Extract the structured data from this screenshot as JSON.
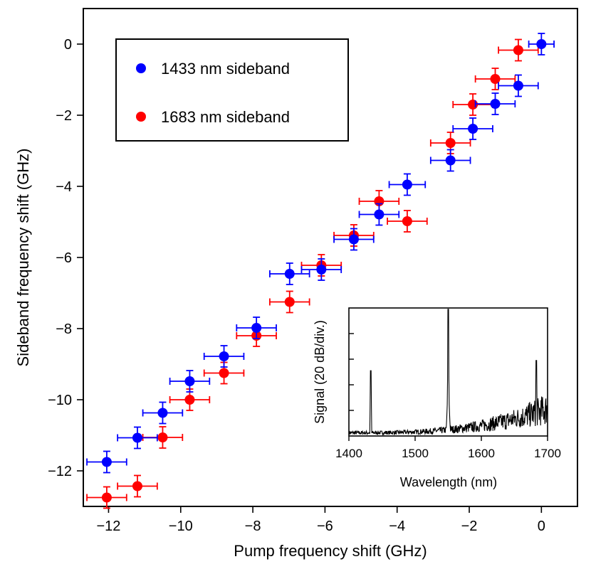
{
  "chart_data": [
    {
      "type": "scatter",
      "title": "",
      "xlabel": "Pump frequency shift (GHz)",
      "ylabel": "Sideband frequency shift (GHz)",
      "xlim": [
        -12.7,
        1.0
      ],
      "ylim": [
        -13.0,
        1.0
      ],
      "xticks": [
        -12,
        -10,
        -8,
        -6,
        -4,
        -2,
        0
      ],
      "yticks": [
        -12,
        -10,
        -8,
        -6,
        -4,
        -2,
        0
      ],
      "xtick_labels": [
        "−12",
        "−10",
        "−8",
        "−6",
        "−4",
        "−2",
        "0"
      ],
      "ytick_labels": [
        "−12",
        "−10",
        "−8",
        "−6",
        "−4",
        "−2",
        "0"
      ],
      "grid": false,
      "legend_position": "top-left",
      "series": [
        {
          "name": "1433 nm sideband",
          "color": "#0000ff",
          "x": [
            0.0,
            -0.64,
            -1.28,
            -1.9,
            -2.52,
            -3.72,
            -4.5,
            -5.2,
            -6.1,
            -6.98,
            -7.9,
            -8.8,
            -9.75,
            -10.5,
            -11.2,
            -12.05
          ],
          "y": [
            0.0,
            -1.17,
            -1.68,
            -2.38,
            -3.27,
            -3.95,
            -4.79,
            -5.49,
            -6.34,
            -6.46,
            -7.98,
            -8.78,
            -9.48,
            -10.37,
            -11.07,
            -11.75
          ],
          "xerr": [
            0.35,
            0.55,
            0.55,
            0.55,
            0.55,
            0.5,
            0.55,
            0.55,
            0.55,
            0.55,
            0.55,
            0.55,
            0.55,
            0.55,
            0.55,
            0.55
          ],
          "yerr": [
            0.3,
            0.3,
            0.3,
            0.3,
            0.3,
            0.3,
            0.3,
            0.3,
            0.3,
            0.3,
            0.3,
            0.3,
            0.3,
            0.3,
            0.3,
            0.3
          ]
        },
        {
          "name": "1683 nm sideband",
          "color": "#ff0000",
          "x": [
            -0.64,
            -1.28,
            -1.9,
            -2.52,
            -3.72,
            -4.5,
            -5.2,
            -6.1,
            -6.98,
            -7.9,
            -8.8,
            -9.75,
            -10.5,
            -11.2,
            -12.05
          ],
          "y": [
            -0.17,
            -0.98,
            -1.7,
            -2.78,
            -4.98,
            -4.42,
            -5.38,
            -6.22,
            -7.25,
            -8.2,
            -9.25,
            -10.0,
            -11.06,
            -12.43,
            -12.75
          ],
          "xerr": [
            0.55,
            0.55,
            0.55,
            0.55,
            0.55,
            0.55,
            0.55,
            0.55,
            0.55,
            0.55,
            0.55,
            0.55,
            0.55,
            0.55,
            0.55
          ],
          "yerr": [
            0.3,
            0.3,
            0.3,
            0.3,
            0.3,
            0.3,
            0.3,
            0.3,
            0.3,
            0.3,
            0.3,
            0.3,
            0.3,
            0.3,
            0.3
          ]
        }
      ]
    },
    {
      "type": "line",
      "title": "",
      "xlabel": "Wavelength (nm)",
      "ylabel": "Signal (20 dB/div.)",
      "xlim": [
        1400,
        1700
      ],
      "xticks": [
        1400,
        1500,
        1600,
        1700
      ],
      "xtick_labels": [
        "1400",
        "1500",
        "1600",
        "1700"
      ],
      "ylim": [
        0,
        5
      ],
      "y_divisions": 5,
      "grid": false,
      "series": [
        {
          "name": "spectrum",
          "color": "#000000",
          "peaks": [
            {
              "wavelength": 1433,
              "level": 2.55
            },
            {
              "wavelength": 1550,
              "level": 4.95
            },
            {
              "wavelength": 1683,
              "level": 2.95
            }
          ],
          "noise_floor_start": 0.2,
          "noise_floor_end": 1.7,
          "central_base_width_nm": 5
        }
      ]
    }
  ]
}
